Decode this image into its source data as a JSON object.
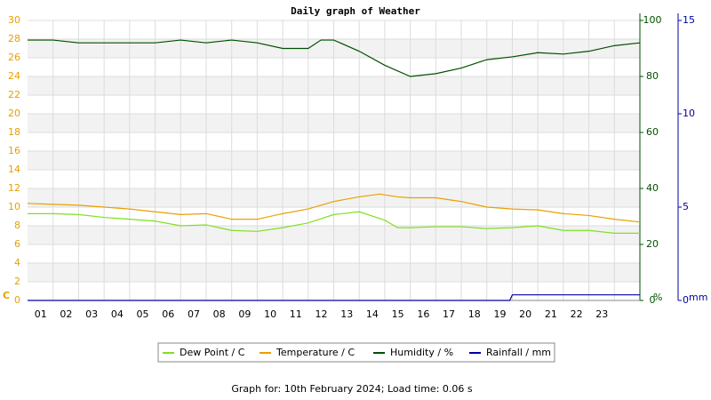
{
  "chart_data": {
    "type": "line",
    "title": "Daily graph of Weather",
    "ylabel": "C",
    "y2label": "%",
    "y3label": "mm",
    "footer": "Graph for: 10th February 2024; Load time: 0.06 s",
    "xlim": [
      0,
      24
    ],
    "xticks": [
      {
        "value": 1,
        "label": "01"
      },
      {
        "value": 2,
        "label": "02"
      },
      {
        "value": 3,
        "label": "03"
      },
      {
        "value": 4,
        "label": "04"
      },
      {
        "value": 5,
        "label": "05"
      },
      {
        "value": 6,
        "label": "06"
      },
      {
        "value": 7,
        "label": "07"
      },
      {
        "value": 8,
        "label": "08"
      },
      {
        "value": 9,
        "label": "09"
      },
      {
        "value": 10,
        "label": "10"
      },
      {
        "value": 11,
        "label": "11"
      },
      {
        "value": 12,
        "label": "12"
      },
      {
        "value": 13,
        "label": "13"
      },
      {
        "value": 14,
        "label": "14"
      },
      {
        "value": 15,
        "label": "15"
      },
      {
        "value": 16,
        "label": "16"
      },
      {
        "value": 17,
        "label": "17"
      },
      {
        "value": 18,
        "label": "18"
      },
      {
        "value": 19,
        "label": "19"
      },
      {
        "value": 20,
        "label": "20"
      },
      {
        "value": 21,
        "label": "21"
      },
      {
        "value": 22,
        "label": "22"
      },
      {
        "value": 23,
        "label": "23"
      }
    ],
    "ylim": [
      0,
      30
    ],
    "yticks": [
      0,
      2,
      4,
      6,
      8,
      10,
      12,
      14,
      16,
      18,
      20,
      22,
      24,
      26,
      28,
      30
    ],
    "y2lim": [
      0,
      100
    ],
    "y2ticks": [
      0,
      20,
      40,
      60,
      80,
      100
    ],
    "y3lim": [
      0,
      15
    ],
    "y3ticks": [
      0,
      5,
      10,
      15
    ],
    "grid": true,
    "series": [
      {
        "name": "Dew Point / C",
        "color": "#80e020",
        "axis": "y",
        "x": [
          0,
          1,
          2,
          3,
          4,
          5,
          6,
          7,
          8,
          9,
          10,
          11,
          12,
          13,
          14,
          14.5,
          15,
          16,
          17,
          18,
          19,
          20,
          21,
          22,
          23,
          24
        ],
        "values": [
          9.3,
          9.3,
          9.2,
          8.9,
          8.7,
          8.5,
          8.0,
          8.1,
          7.5,
          7.4,
          7.8,
          8.3,
          9.2,
          9.5,
          8.6,
          7.8,
          7.8,
          7.9,
          7.9,
          7.7,
          7.8,
          8.0,
          7.5,
          7.5,
          7.2,
          7.2
        ]
      },
      {
        "name": "Temperature / C",
        "color": "#e8a000",
        "axis": "y",
        "x": [
          0,
          1,
          2,
          3,
          4,
          5,
          6,
          7,
          8,
          9,
          10,
          11,
          12,
          13,
          13.8,
          14.5,
          15,
          16,
          17,
          18,
          19,
          20,
          21,
          22,
          23,
          24
        ],
        "values": [
          10.4,
          10.3,
          10.2,
          10.0,
          9.8,
          9.5,
          9.2,
          9.3,
          8.7,
          8.7,
          9.3,
          9.8,
          10.6,
          11.1,
          11.4,
          11.1,
          11.0,
          11.0,
          10.6,
          10.0,
          9.8,
          9.7,
          9.3,
          9.1,
          8.7,
          8.4
        ]
      },
      {
        "name": "Humidity / %",
        "color": "#005000",
        "axis": "y2",
        "x": [
          0,
          1,
          2,
          3,
          4,
          5,
          6,
          7,
          8,
          9,
          10,
          11,
          11.5,
          12,
          13,
          14,
          15,
          16,
          17,
          18,
          19,
          20,
          21,
          22,
          23,
          24
        ],
        "values": [
          93,
          93,
          92,
          92,
          92,
          92,
          93,
          92,
          93,
          92,
          90,
          90,
          93,
          93,
          89,
          84,
          80,
          81,
          83,
          86,
          87,
          88.5,
          88,
          89,
          91,
          92
        ]
      },
      {
        "name": "Rainfall / mm",
        "color": "#0000a0",
        "axis": "y3",
        "x": [
          0,
          18.9,
          19,
          24
        ],
        "values": [
          0,
          0,
          0.3,
          0.3
        ]
      }
    ]
  }
}
